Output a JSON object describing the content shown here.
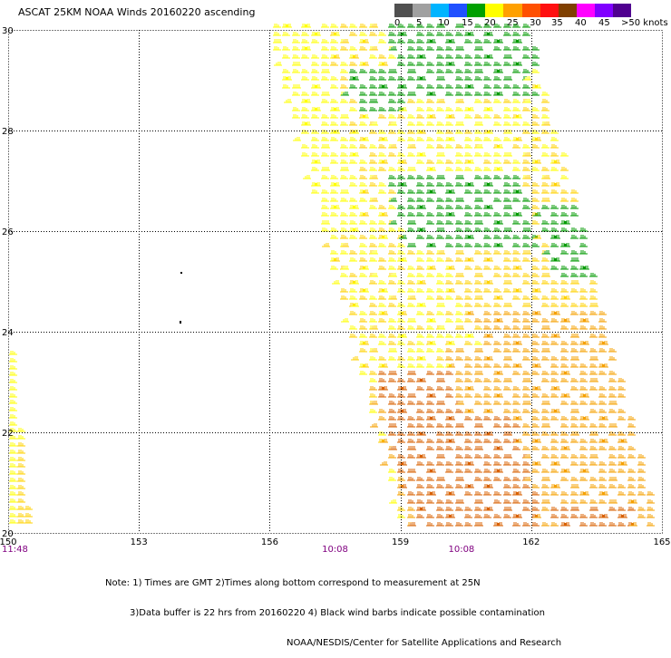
{
  "title": "ASCAT 25KM NOAA Winds 20160220 ascending",
  "legend": {
    "labels": [
      "0",
      "5",
      "10",
      "15",
      "20",
      "25",
      "30",
      "35",
      "40",
      "45",
      ">50 knots"
    ],
    "colors": [
      "#505050",
      "#a0a0a0",
      "#00b4ff",
      "#2050ff",
      "#00a000",
      "#ffff00",
      "#ffa000",
      "#ff5000",
      "#ff1010",
      "#804000",
      "#ff00ff",
      "#8000ff",
      "#500090"
    ]
  },
  "axes": {
    "lon_labels": [
      "150",
      "153",
      "156",
      "159",
      "162",
      "165"
    ],
    "lat_labels": [
      "30",
      "28",
      "26",
      "24",
      "22",
      "20"
    ]
  },
  "times": [
    {
      "label": "11:48",
      "lon": 150.0
    },
    {
      "label": "10:08",
      "lon": 157.5
    },
    {
      "label": "10:08",
      "lon": 160.4
    }
  ],
  "notes": [
    "Note: 1) Times are GMT 2)Times along bottom correspond to measurement at 25N",
    "3)Data buffer is 22 hrs from 20160220 4) Black wind barbs indicate possible contamination",
    "NOAA/NESDIS/Center for Satellite Applications and Research"
  ],
  "map": {
    "lon_range": [
      150,
      165
    ],
    "lat_range": [
      20,
      30
    ],
    "grid": "dashed",
    "main_swath_corners": [
      [
        155.9,
        30.1
      ],
      [
        161.9,
        30.1
      ],
      [
        164.9,
        20.0
      ],
      [
        159.0,
        20.0
      ]
    ],
    "left_swath_corners": [
      [
        150.0,
        23.6
      ],
      [
        150.4,
        20.0
      ],
      [
        150.0,
        20.0
      ]
    ]
  },
  "colors": {
    "light": "#ffff00",
    "med": "#ffd200",
    "orange": "#f5a000",
    "dorange": "#d86000",
    "green": "#009a00",
    "black": "#000000"
  }
}
